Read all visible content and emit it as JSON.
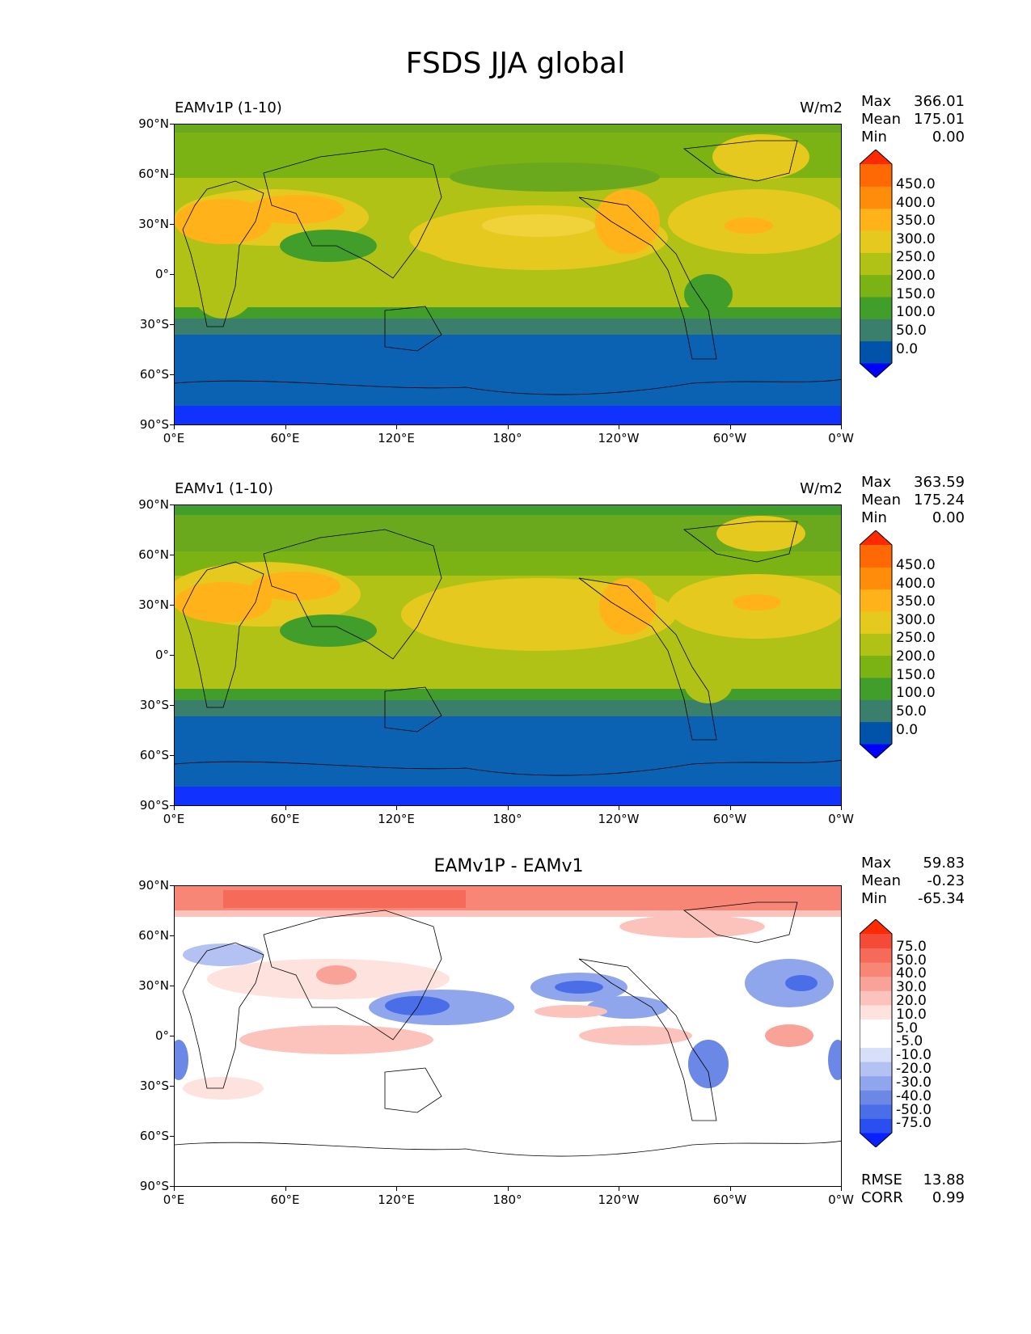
{
  "figure": {
    "title": "FSDS JJA global"
  },
  "axes": {
    "lat_ticks": [
      "90°N",
      "60°N",
      "30°N",
      "0°",
      "30°S",
      "60°S",
      "90°S"
    ],
    "lon_ticks": [
      "0°E",
      "60°E",
      "120°E",
      "180°",
      "120°W",
      "60°W",
      "0°W"
    ]
  },
  "panels": [
    {
      "title_left": "EAMv1P (1-10)",
      "units": "W/m2",
      "stats": [
        {
          "label": "Max",
          "value": "366.01"
        },
        {
          "label": "Mean",
          "value": "175.01"
        },
        {
          "label": "Min",
          "value": "0.00"
        }
      ],
      "colorbar": {
        "labels": [
          "450.0",
          "400.0",
          "350.0",
          "300.0",
          "250.0",
          "200.0",
          "150.0",
          "100.0",
          "50.0",
          "0.0"
        ],
        "colors": [
          "#0000ff",
          "#0053a9",
          "#3a7f6b",
          "#429e2b",
          "#7bb214",
          "#b0c216",
          "#e6c91e",
          "#ffb21a",
          "#ff8c0a",
          "#ff6905",
          "#ff2a00"
        ]
      }
    },
    {
      "title_left": "EAMv1 (1-10)",
      "units": "W/m2",
      "stats": [
        {
          "label": "Max",
          "value": "363.59"
        },
        {
          "label": "Mean",
          "value": "175.24"
        },
        {
          "label": "Min",
          "value": "0.00"
        }
      ],
      "colorbar": {
        "labels": [
          "450.0",
          "400.0",
          "350.0",
          "300.0",
          "250.0",
          "200.0",
          "150.0",
          "100.0",
          "50.0",
          "0.0"
        ],
        "colors": [
          "#0000ff",
          "#0053a9",
          "#3a7f6b",
          "#429e2b",
          "#7bb214",
          "#b0c216",
          "#e6c91e",
          "#ffb21a",
          "#ff8c0a",
          "#ff6905",
          "#ff2a00"
        ]
      }
    },
    {
      "title_center": "EAMv1P - EAMv1",
      "stats": [
        {
          "label": "Max",
          "value": "59.83"
        },
        {
          "label": "Mean",
          "value": "-0.23"
        },
        {
          "label": "Min",
          "value": "-65.34"
        }
      ],
      "footer_stats": [
        {
          "label": "RMSE",
          "value": "13.88"
        },
        {
          "label": "CORR",
          "value": "0.99"
        }
      ],
      "colorbar": {
        "labels": [
          "75.0",
          "50.0",
          "40.0",
          "30.0",
          "20.0",
          "10.0",
          "5.0",
          "-5.0",
          "-10.0",
          "-20.0",
          "-30.0",
          "-40.0",
          "-50.0",
          "-75.0"
        ],
        "colors": [
          "#0a20ff",
          "#2a4ef0",
          "#4a6ee8",
          "#6b88e6",
          "#8fa6ec",
          "#b3c2f2",
          "#d7e0f8",
          "#ffffff",
          "#ffffff",
          "#fde2de",
          "#fbc3bb",
          "#f9a398",
          "#f78677",
          "#f56a58",
          "#f34b37",
          "#ff2a00"
        ]
      }
    }
  ]
}
